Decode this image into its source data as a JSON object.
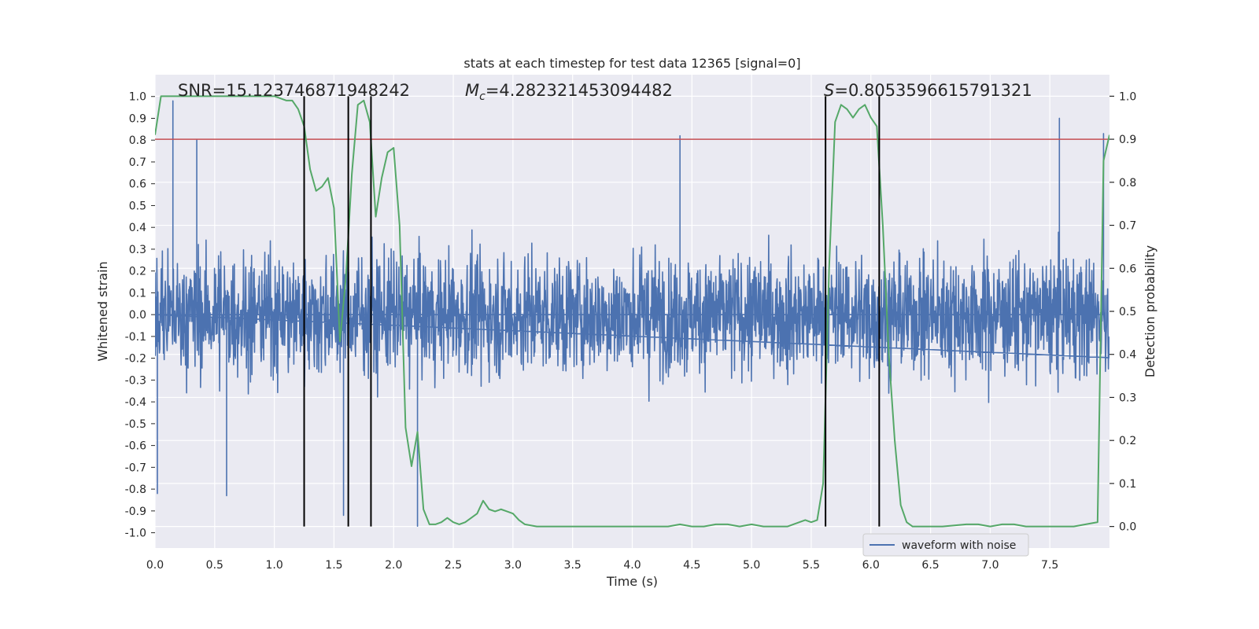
{
  "chart_data": {
    "type": "line",
    "title": "stats at each timestep for test data 12365 [signal=0]",
    "xlabel": "Time (s)",
    "ylabel_left": "Whitened strain",
    "ylabel_right": "Detection probability",
    "xlim": [
      0,
      8
    ],
    "ylim_left": [
      -1.07,
      1.1
    ],
    "ylim_right": [
      -0.05,
      1.05
    ],
    "x_ticks": [
      "0.0",
      "0.5",
      "1.0",
      "1.5",
      "2.0",
      "2.5",
      "3.0",
      "3.5",
      "4.0",
      "4.5",
      "5.0",
      "5.5",
      "6.0",
      "6.5",
      "7.0",
      "7.5"
    ],
    "y_ticks_left": [
      "1.0",
      "0.9",
      "0.8",
      "0.7",
      "0.6",
      "0.5",
      "0.4",
      "0.3",
      "0.2",
      "0.1",
      "0.0",
      "-0.1",
      "-0.2",
      "-0.3",
      "-0.4",
      "-0.5",
      "-0.6",
      "-0.7",
      "-0.8",
      "-0.9",
      "-1.0"
    ],
    "y_ticks_right": [
      "1.0",
      "0.9",
      "0.8",
      "0.7",
      "0.6",
      "0.5",
      "0.4",
      "0.3",
      "0.2",
      "0.1",
      "0.0"
    ],
    "grid": true,
    "legend_position": "bottom-right",
    "annotations": {
      "snr": "SNR=15.123746871948242",
      "mc": "=4.282321453094482",
      "s": "=0.8053596615791321"
    },
    "threshold": {
      "value": 0.9,
      "axis": "right",
      "color": "#c44e52"
    },
    "vertical_lines": [
      1.25,
      1.62,
      1.81,
      5.62,
      6.07
    ],
    "vertical_lines_range": [
      0,
      1
    ],
    "series": [
      {
        "name": "waveform with noise",
        "axis": "left",
        "color": "#4c72b0",
        "note": "dense noise; amplitude spikes listed",
        "spikes": [
          {
            "x": 0.02,
            "y": -0.82
          },
          {
            "x": 0.15,
            "y": 0.98
          },
          {
            "x": 0.35,
            "y": 0.8
          },
          {
            "x": 0.6,
            "y": -0.83
          },
          {
            "x": 1.58,
            "y": -0.92
          },
          {
            "x": 2.2,
            "y": -0.97
          },
          {
            "x": 4.4,
            "y": 0.82
          },
          {
            "x": 7.58,
            "y": 0.9
          },
          {
            "x": 7.95,
            "y": 0.83
          }
        ]
      },
      {
        "name": "Detection probability",
        "axis": "right",
        "color": "#55a868",
        "x": [
          0,
          0.05,
          0.1,
          0.2,
          0.3,
          0.5,
          0.7,
          0.9,
          1.0,
          1.05,
          1.1,
          1.15,
          1.2,
          1.25,
          1.3,
          1.35,
          1.4,
          1.45,
          1.5,
          1.55,
          1.6,
          1.65,
          1.7,
          1.75,
          1.8,
          1.85,
          1.9,
          1.95,
          2.0,
          2.05,
          2.1,
          2.15,
          2.2,
          2.25,
          2.3,
          2.35,
          2.4,
          2.45,
          2.5,
          2.55,
          2.6,
          2.65,
          2.7,
          2.75,
          2.8,
          2.85,
          2.9,
          2.95,
          3.0,
          3.05,
          3.1,
          3.2,
          3.3,
          3.5,
          4.0,
          4.3,
          4.4,
          4.5,
          4.6,
          4.7,
          4.8,
          4.9,
          5.0,
          5.1,
          5.2,
          5.3,
          5.4,
          5.45,
          5.5,
          5.55,
          5.6,
          5.65,
          5.7,
          5.75,
          5.8,
          5.85,
          5.9,
          5.95,
          6.0,
          6.05,
          6.1,
          6.15,
          6.2,
          6.25,
          6.3,
          6.35,
          6.4,
          6.6,
          6.8,
          6.9,
          7.0,
          7.1,
          7.2,
          7.3,
          7.5,
          7.7,
          7.8,
          7.9,
          7.95,
          8.0
        ],
        "y": [
          0.91,
          1.0,
          1.0,
          1.0,
          1.0,
          1.0,
          1.0,
          1.0,
          1.0,
          0.995,
          0.99,
          0.99,
          0.97,
          0.93,
          0.83,
          0.78,
          0.79,
          0.81,
          0.74,
          0.43,
          0.58,
          0.82,
          0.98,
          0.99,
          0.94,
          0.72,
          0.81,
          0.87,
          0.88,
          0.7,
          0.23,
          0.14,
          0.22,
          0.04,
          0.005,
          0.005,
          0.01,
          0.02,
          0.01,
          0.005,
          0.01,
          0.02,
          0.03,
          0.06,
          0.04,
          0.035,
          0.04,
          0.035,
          0.03,
          0.015,
          0.005,
          0.0,
          0.0,
          0.0,
          0.0,
          0.0,
          0.005,
          0.0,
          0.0,
          0.005,
          0.005,
          0.0,
          0.005,
          0.0,
          0.0,
          0.0,
          0.01,
          0.015,
          0.01,
          0.015,
          0.1,
          0.6,
          0.94,
          0.98,
          0.97,
          0.95,
          0.97,
          0.98,
          0.95,
          0.93,
          0.7,
          0.4,
          0.2,
          0.05,
          0.01,
          0.0,
          0.0,
          0.0,
          0.005,
          0.005,
          0.0,
          0.005,
          0.005,
          0.0,
          0.0,
          0.0,
          0.005,
          0.01,
          0.85,
          0.91
        ]
      }
    ]
  }
}
